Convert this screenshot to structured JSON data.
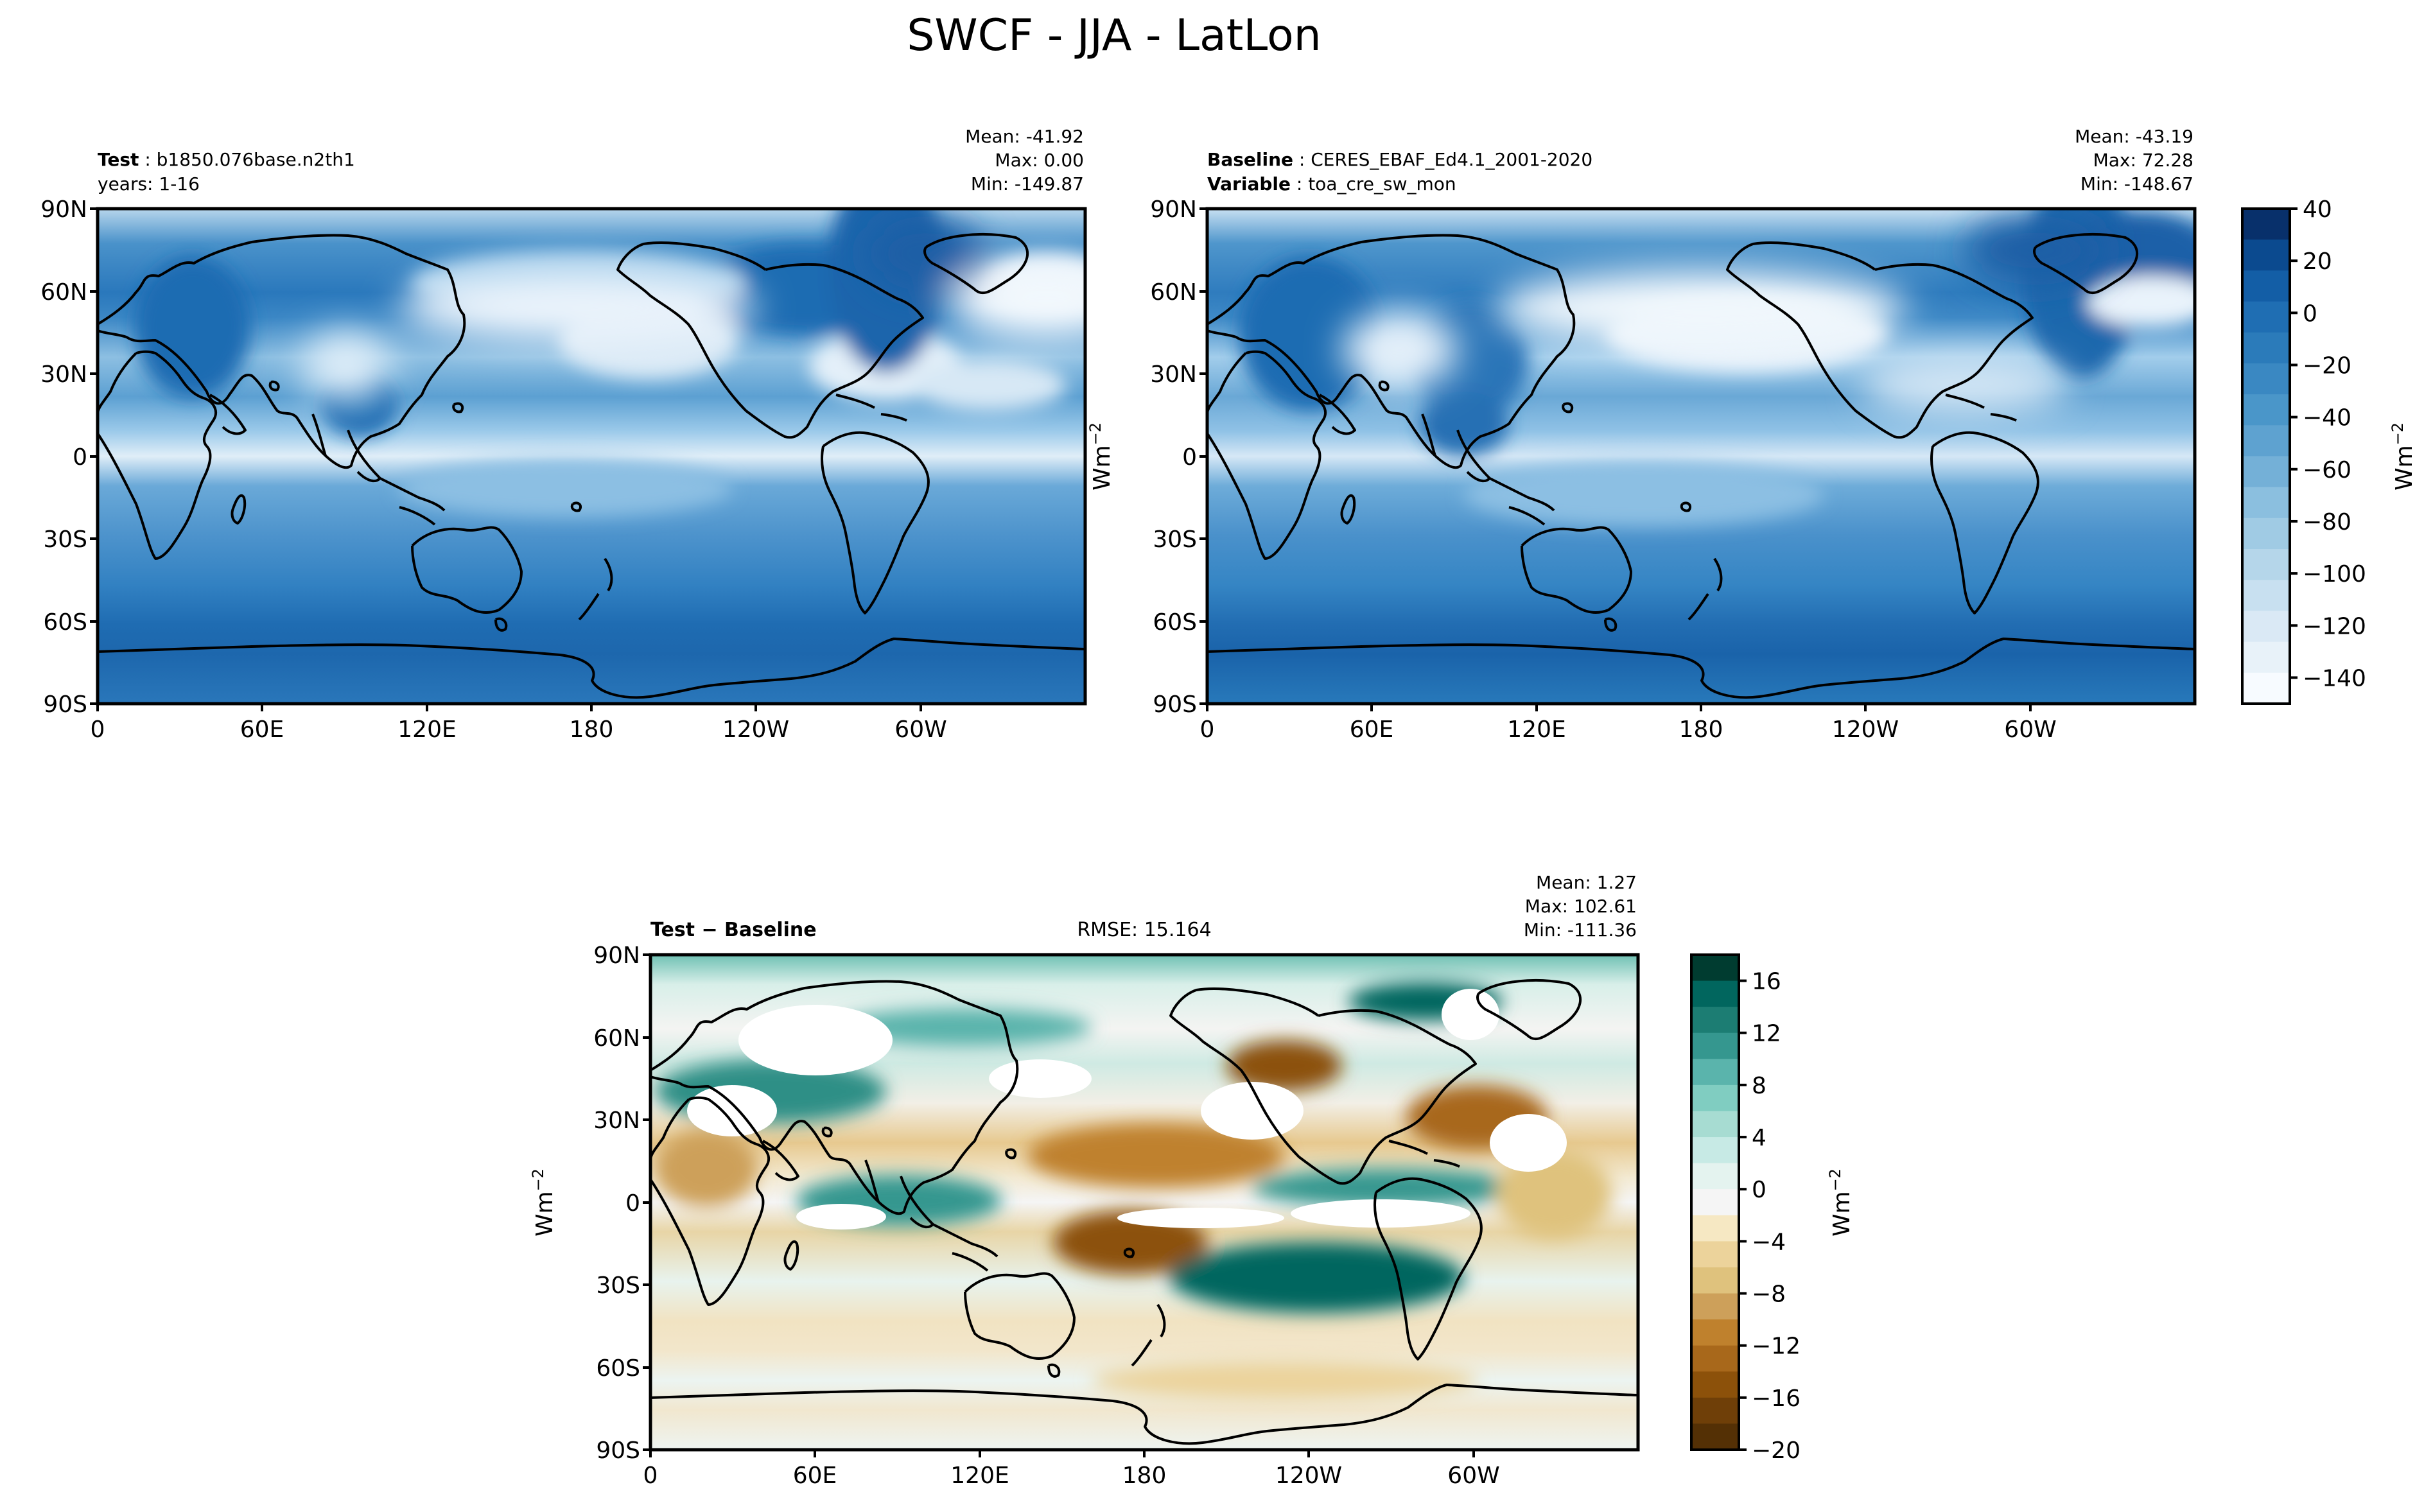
{
  "figure": {
    "title": "SWCF - JJA - LatLon"
  },
  "axes": {
    "lat_ticks": [
      "90N",
      "60N",
      "30N",
      "0",
      "30S",
      "60S",
      "90S"
    ],
    "lon_ticks": [
      "0",
      "60E",
      "120E",
      "180",
      "120W",
      "60W"
    ],
    "unit_label": "Wm",
    "unit_exponent": "−2"
  },
  "panels": {
    "test": {
      "label_bold": "Test",
      "label_value": "b1850.076base.n2th1",
      "line2": "years: 1-16",
      "mean": "Mean: -41.92",
      "max": "Max:  0.00",
      "min": "Min: -149.87"
    },
    "baseline": {
      "label_bold": "Baseline",
      "label_value": "CERES_EBAF_Ed4.1_2001-2020",
      "line2_bold": "Variable",
      "line2_value": "toa_cre_sw_mon",
      "mean": "Mean: -43.19",
      "max": "Max: 72.28",
      "min": "Min: -148.67"
    },
    "diff": {
      "label_bold": "Test − Baseline",
      "rmse": "RMSE: 15.164",
      "mean": "Mean:  1.27",
      "max": "Max: 102.61",
      "min": "Min: -111.36"
    }
  },
  "colorbars": {
    "main": {
      "ticks": [
        "40",
        "20",
        "0",
        "−20",
        "−40",
        "−60",
        "−80",
        "−100",
        "−120",
        "−140"
      ],
      "colors": [
        "#08306b",
        "#0b4a8f",
        "#135ea6",
        "#1f6eb3",
        "#2b7bba",
        "#3a88c2",
        "#4a96c9",
        "#5ea2d0",
        "#74b0d7",
        "#8bbfdf",
        "#a0cbe4",
        "#b5d6ea",
        "#c8e0f0",
        "#dae9f5",
        "#e8f2f9",
        "#f7fbff"
      ]
    },
    "diff": {
      "ticks": [
        "16",
        "12",
        "8",
        "4",
        "0",
        "−4",
        "−8",
        "−12",
        "−16",
        "−20"
      ],
      "colors": [
        "#003c30",
        "#01665e",
        "#1c7d73",
        "#35978f",
        "#5ab4ac",
        "#80cdc1",
        "#a7dcd2",
        "#c7eae5",
        "#e4f3ef",
        "#f5f5f5",
        "#f6e8c3",
        "#ecd39b",
        "#dfc27d",
        "#cda05a",
        "#bf812d",
        "#a8681b",
        "#8c510a",
        "#6f3f08",
        "#543005"
      ]
    }
  }
}
